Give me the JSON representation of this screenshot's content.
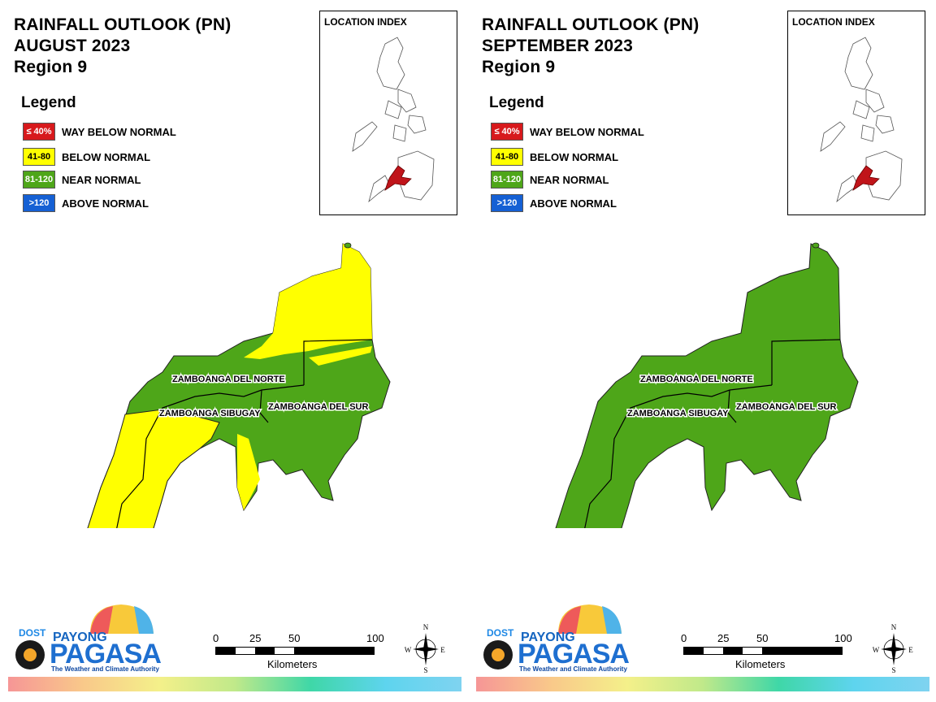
{
  "panels": [
    {
      "title_line1": "RAINFALL OUTLOOK (PN)",
      "title_line2": "AUGUST 2023",
      "title_line3": "Region 9"
    },
    {
      "title_line1": "RAINFALL OUTLOOK (PN)",
      "title_line2": "SEPTEMBER 2023",
      "title_line3": "Region 9"
    }
  ],
  "legend": {
    "title": "Legend",
    "items": [
      {
        "range": "≤ 40%",
        "label": "WAY BELOW NORMAL",
        "color": "#d7191c",
        "text_color": "#ffffff"
      },
      {
        "range": "41-80",
        "label": "BELOW NORMAL",
        "color": "#ffff00",
        "text_color": "#000000"
      },
      {
        "range": "81-120",
        "label": "NEAR NORMAL",
        "color": "#4ea619",
        "text_color": "#ffffff"
      },
      {
        "range": ">120",
        "label": "ABOVE NORMAL",
        "color": "#1560d4",
        "text_color": "#ffffff"
      }
    ]
  },
  "inset": {
    "title": "LOCATION INDEX"
  },
  "provinces": {
    "north": "ZAMBOANGA DEL NORTE",
    "sibugay": "ZAMBOANGA SIBUGAY",
    "south": "ZAMBOANGA DEL SUR"
  },
  "scale_bar": {
    "ticks": [
      "0",
      "25",
      "50",
      "100"
    ],
    "unit": "Kilometers"
  },
  "north_arrow": {
    "n": "N",
    "s": "S",
    "e": "E",
    "w": "W"
  },
  "logo": {
    "dost": "DOST",
    "payong": "PAYONG",
    "pagasa": "PAGASA",
    "tagline": "The Weather and Climate Authority"
  },
  "map_fill": {
    "august": "mixed below normal and near normal",
    "september": "near normal"
  }
}
